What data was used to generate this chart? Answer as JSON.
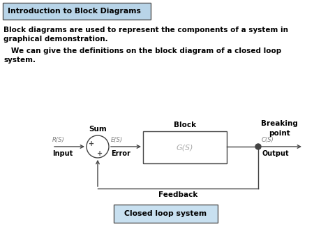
{
  "title": "Introduction to Block Diagrams",
  "title_bg": "#b8d4e8",
  "text1_line1": "Block diagrams are used to represent the components of a system in",
  "text1_line2": "graphical demonstration.",
  "text2_line1": "   We can give the definitions on the block diagram of a closed loop",
  "text2_line2": "system.",
  "label_block": "Block",
  "label_sum": "Sum",
  "label_breaking": "Breaking",
  "label_breaking2": "point",
  "label_feedback": "Feedback",
  "label_gs": "G(S)",
  "label_rs": "R(S)",
  "label_es": "E(S)",
  "label_cs": "C(S)",
  "label_input": "Input",
  "label_output": "Output",
  "label_error": "Error",
  "label_closed": "Closed loop system",
  "closed_bg": "#c8e0f0",
  "diagram_color": "#444444",
  "bg_color": "#ffffff",
  "plus_color": "#555555"
}
